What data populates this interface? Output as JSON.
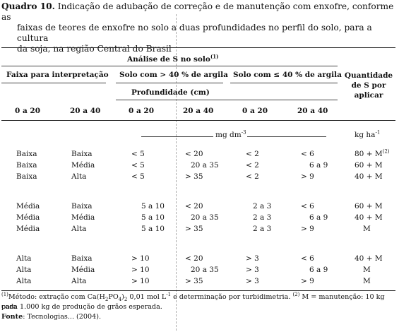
{
  "caption": {
    "label": "Quadro 10.",
    "line1": "Indicação de adubação de correção e de manutenção com enxofre, conforme as",
    "line2": "faixas de teores de enxofre no solo  a duas profundidades no perfil do solo, para a cultura",
    "line3": "da soja, na região Central do Brasil"
  },
  "header": {
    "analise": "Análise de S no solo",
    "analise_note": "(1)",
    "faixa": "Faixa para interpretação",
    "solo_maior": "Solo com > 40 % de argila",
    "solo_menor": "Solo com ≤ 40 % de argila",
    "quantidade": [
      "Quantidade",
      "de S por",
      "aplicar"
    ],
    "profundidade": "Profundidade (cm)",
    "depths": [
      "0 a 20",
      "20 a 40",
      "0 a 20",
      "20 a 40",
      "0 a 20",
      "20 a 40"
    ]
  },
  "units": {
    "mg_prefix": "mg dm",
    "mg_exp": "-3",
    "kg_prefix": "kg ha",
    "kg_exp": "-1"
  },
  "groups": [
    {
      "rows": [
        [
          "Baixa",
          "Baixa",
          "< 5",
          "< 20",
          "< 2",
          "< 6",
          "80 + M",
          "(2)"
        ],
        [
          "Baixa",
          "Média",
          "< 5",
          "20 a 35",
          "< 2",
          "6 a 9",
          "60 + M",
          ""
        ],
        [
          "Baixa",
          "Alta",
          "< 5",
          "> 35",
          "< 2",
          "> 9",
          "40 + M",
          ""
        ]
      ]
    },
    {
      "rows": [
        [
          "Média",
          "Baixa",
          "5 a 10",
          "< 20",
          "2 a 3",
          "< 6",
          "60 + M",
          ""
        ],
        [
          "Média",
          "Média",
          "5 a 10",
          "20 a 35",
          "2 a 3",
          "6 a 9",
          "40 + M",
          ""
        ],
        [
          "Média",
          "Alta",
          "5 a 10",
          "> 35",
          "2 a 3",
          "> 9",
          "M",
          ""
        ]
      ]
    },
    {
      "rows": [
        [
          "Alta",
          "Baixa",
          "> 10",
          "< 20",
          "> 3",
          "< 6",
          "40 + M",
          ""
        ],
        [
          "Alta",
          "Média",
          "> 10",
          "20 a 35",
          "> 3",
          "6 a 9",
          "M",
          ""
        ],
        [
          "Alta",
          "Alta",
          "> 10",
          "> 35",
          "> 3",
          "> 9",
          "M",
          ""
        ]
      ]
    }
  ],
  "footnotes": {
    "n1_mark": "(1)",
    "n1_a": "Método: extração com Ca(H",
    "n1_sub1": "2",
    "n1_b": "PO",
    "n1_sub2": "4",
    "n1_c": ")",
    "n1_sub3": "2",
    "n1_d": " 0,01 mol L",
    "n1_sup": "-1",
    "n1_e": " e determinação por turbidimetria. ",
    "n2_mark": "(2)",
    "n2_text": " M = manutenção: 10 kg para",
    "n2_line2": "cada 1.000 kg de produção de grãos esperada.",
    "fonte_label": "Fonte",
    "fonte_text": ": Tecnologias... (2004)."
  }
}
